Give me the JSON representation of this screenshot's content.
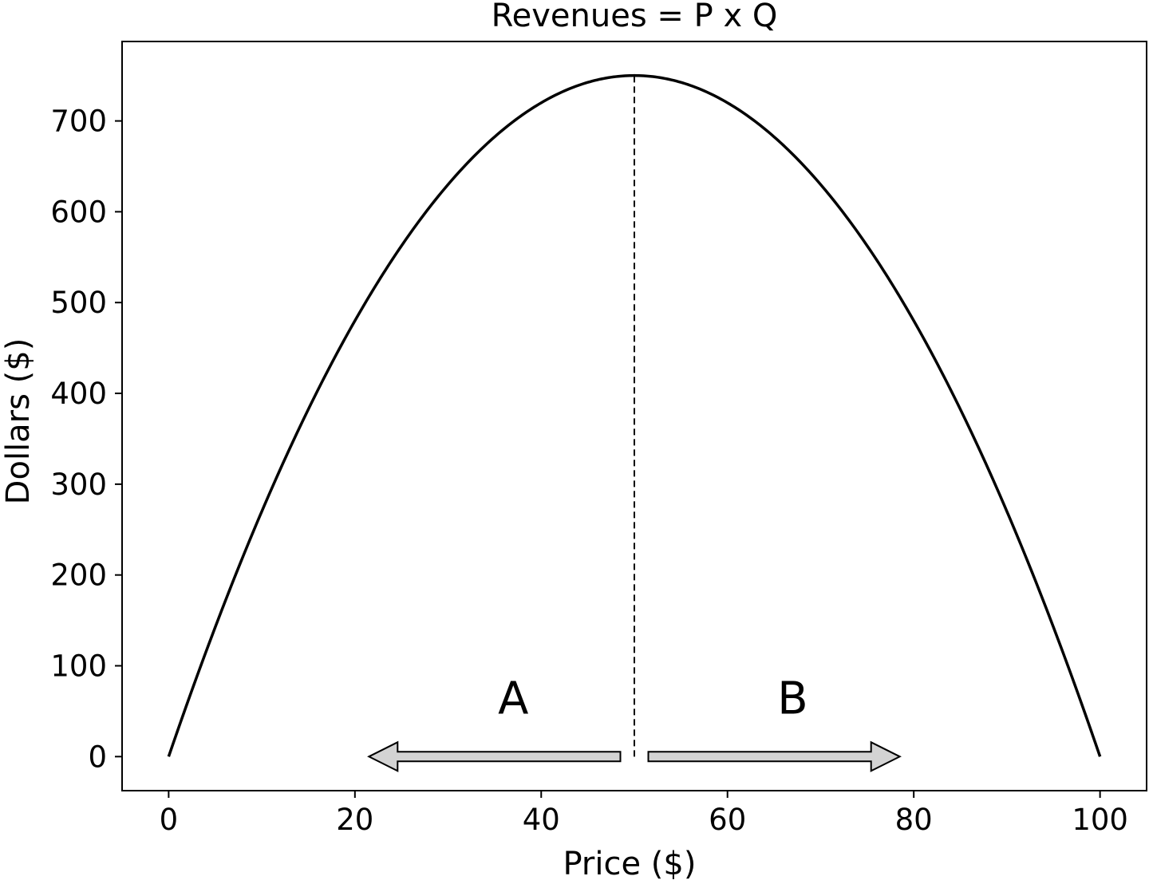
{
  "chart_data": {
    "type": "line",
    "title": "Revenues = P x Q",
    "xlabel": "Price ($)",
    "ylabel": "Dollars ($)",
    "xlim": [
      -5,
      105
    ],
    "ylim": [
      -37.5,
      787.5
    ],
    "xticks": [
      0,
      20,
      40,
      60,
      80,
      100
    ],
    "yticks": [
      0,
      100,
      200,
      300,
      400,
      500,
      600,
      700
    ],
    "grid": false,
    "series": [
      {
        "formula": "revenue = 30 * price - 0.3 * price^2",
        "color": "#000000",
        "x": [
          0,
          5,
          10,
          15,
          20,
          25,
          30,
          35,
          40,
          45,
          50,
          55,
          60,
          65,
          70,
          75,
          80,
          85,
          90,
          95,
          100
        ],
        "y": [
          0,
          142.5,
          270,
          382.5,
          480,
          562.5,
          630,
          682.5,
          720,
          742.5,
          750,
          742.5,
          720,
          682.5,
          630,
          562.5,
          480,
          382.5,
          270,
          142.5,
          0
        ]
      }
    ],
    "reference_line": {
      "x": 50,
      "y_from": 0,
      "y_to": 750,
      "style": "dashed"
    },
    "annotations": [
      {
        "text": "A",
        "x": 37,
        "y": 65
      },
      {
        "text": "B",
        "x": 67,
        "y": 65
      }
    ],
    "arrows": [
      {
        "name": "arrow-a",
        "from_x": 48.5,
        "to_x": 21.5,
        "y": 0,
        "fill": "#d3d3d3"
      },
      {
        "name": "arrow-b",
        "from_x": 51.5,
        "to_x": 78.5,
        "y": 0,
        "fill": "#d3d3d3"
      }
    ]
  }
}
